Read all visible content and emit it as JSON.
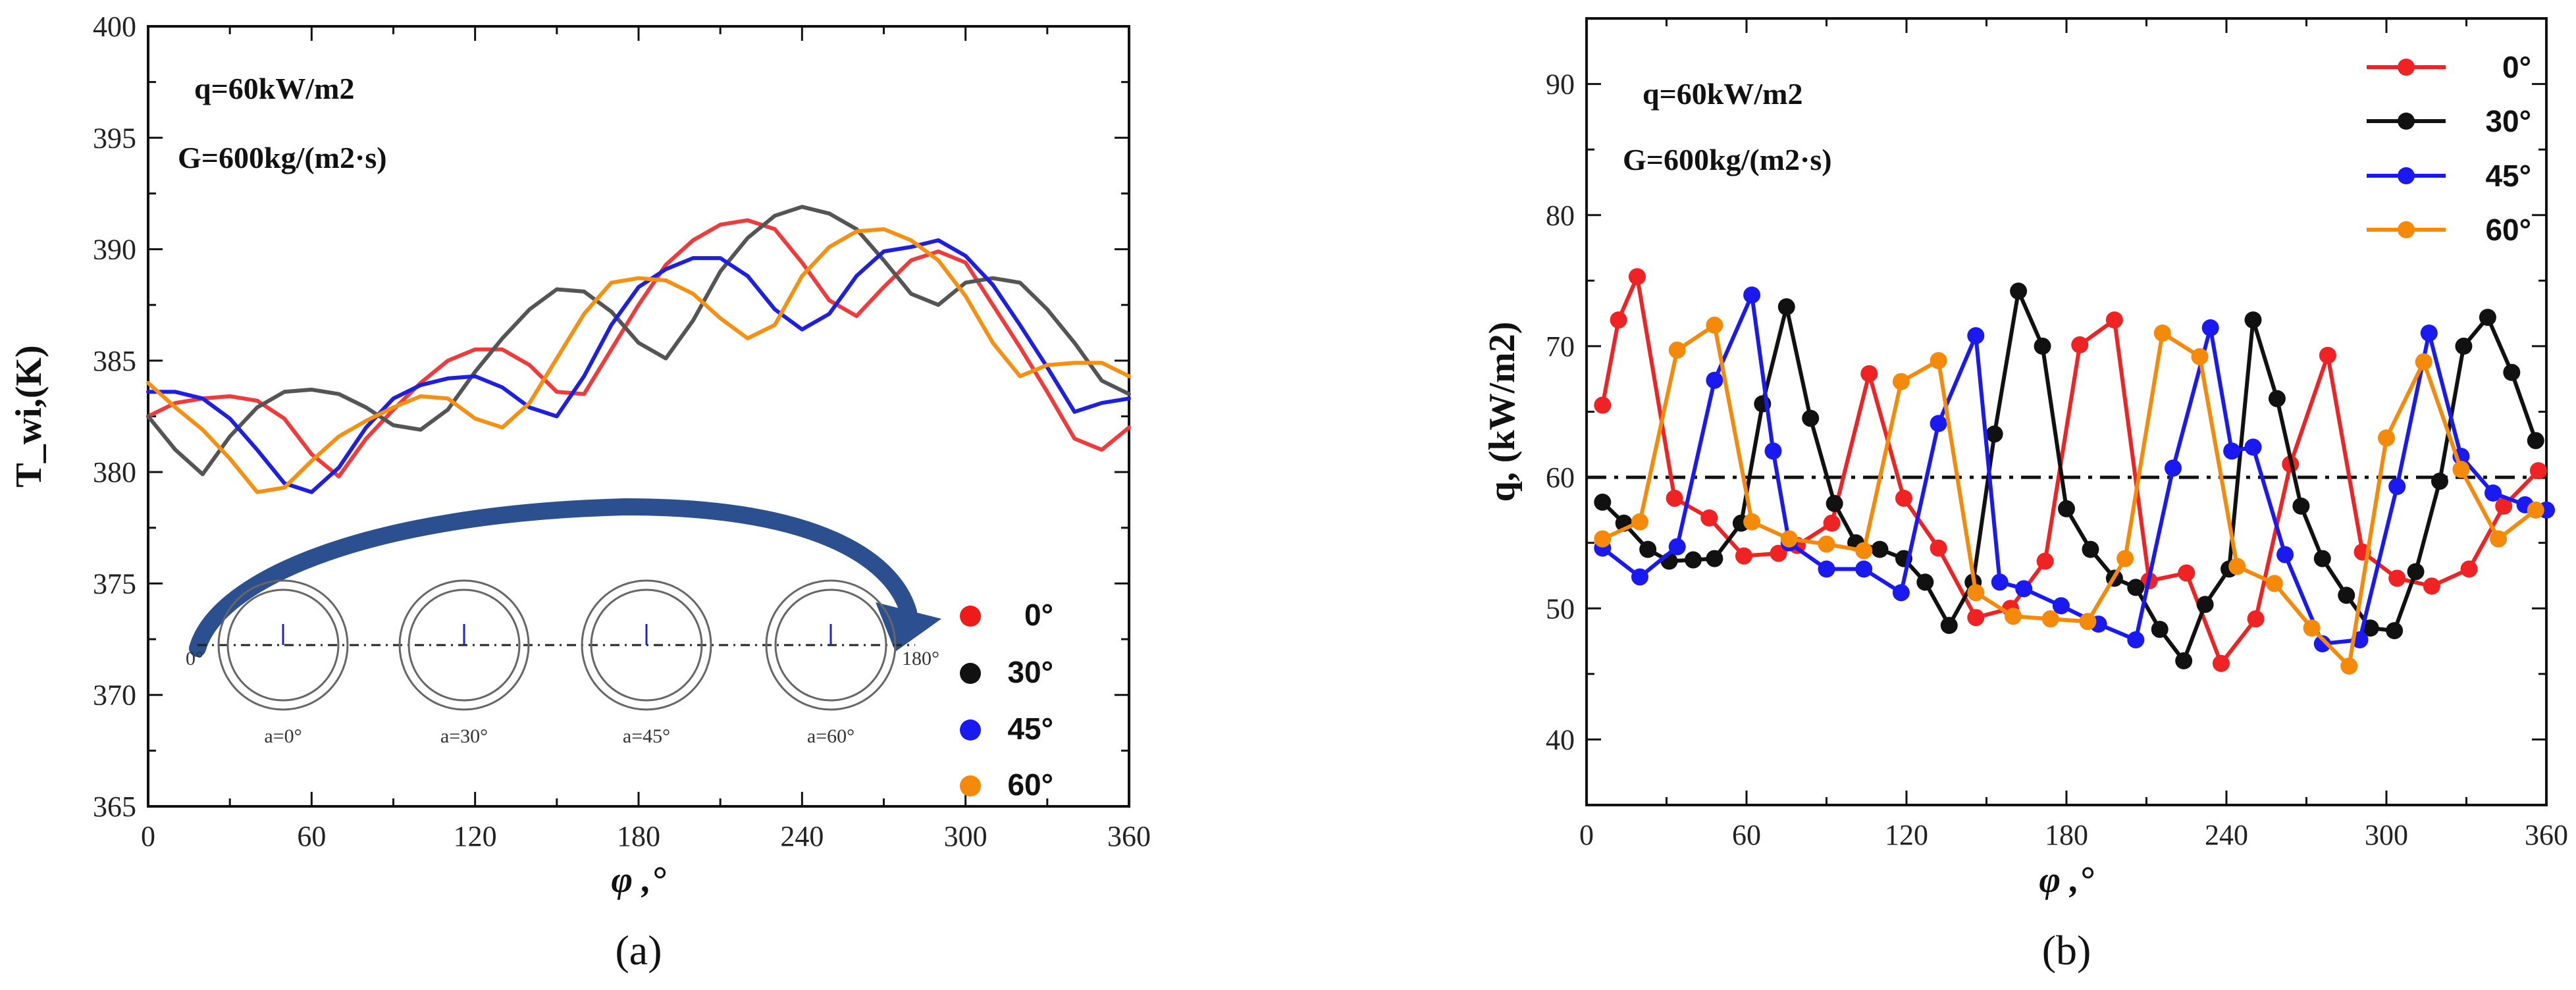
{
  "chart_data": [
    {
      "type": "line",
      "panel": "(a)",
      "title": "",
      "xlabel": "φ ,°",
      "ylabel": "T_wi,(K)",
      "xlim": [
        0,
        360
      ],
      "ylim": [
        365,
        400
      ],
      "xticks": [
        0,
        60,
        120,
        180,
        240,
        300,
        360
      ],
      "yticks": [
        365,
        370,
        375,
        380,
        385,
        390,
        395,
        400
      ],
      "annotations": [
        "q=60kW/m2",
        "G=600kg/(m2·s)"
      ],
      "inset": {
        "start_label": "0°",
        "end_label": "180°",
        "tube_labels": [
          "a=0°",
          "a=30°",
          "a=45°",
          "a=60°"
        ]
      },
      "series": [
        {
          "name": "0°",
          "color": "#ef3b3b",
          "legend_color": "#f01a1a",
          "x": [
            0,
            10,
            20,
            30,
            40,
            50,
            55,
            60,
            70,
            80,
            90,
            100,
            110,
            120,
            130,
            140,
            150,
            160,
            170,
            180,
            190,
            200,
            210,
            220,
            230,
            240,
            250,
            260,
            270,
            280,
            290,
            300,
            310,
            320,
            330,
            340,
            350,
            360
          ],
          "y": [
            382.5,
            383.1,
            383.3,
            383.4,
            383.2,
            382.4,
            381.6,
            380.8,
            379.8,
            381.5,
            382.8,
            384.0,
            385.0,
            385.5,
            385.5,
            384.8,
            383.6,
            383.5,
            385.5,
            387.5,
            389.3,
            390.4,
            391.1,
            391.3,
            390.9,
            389.4,
            387.7,
            387.0,
            388.3,
            389.5,
            389.9,
            389.4,
            387.5,
            385.6,
            383.6,
            381.5,
            381.0,
            382.0
          ]
        },
        {
          "name": "30°",
          "color": "#555555",
          "legend_color": "#111111",
          "x": [
            0,
            10,
            20,
            30,
            40,
            50,
            60,
            70,
            80,
            90,
            100,
            110,
            120,
            130,
            140,
            150,
            160,
            170,
            180,
            190,
            200,
            210,
            220,
            230,
            240,
            250,
            260,
            270,
            280,
            290,
            300,
            310,
            320,
            330,
            340,
            350,
            360
          ],
          "y": [
            382.5,
            381.0,
            379.9,
            381.6,
            382.9,
            383.6,
            383.7,
            383.5,
            382.9,
            382.1,
            381.9,
            382.8,
            384.5,
            386.0,
            387.3,
            388.2,
            388.1,
            387.2,
            385.8,
            385.1,
            386.8,
            389.0,
            390.5,
            391.5,
            391.9,
            391.6,
            390.9,
            389.5,
            388.0,
            387.5,
            388.5,
            388.7,
            388.5,
            387.3,
            385.8,
            384.1,
            383.5
          ]
        },
        {
          "name": "45°",
          "color": "#1f1fe0",
          "legend_color": "#1a1af0",
          "x": [
            0,
            10,
            20,
            30,
            40,
            50,
            60,
            70,
            80,
            90,
            100,
            110,
            120,
            130,
            140,
            150,
            160,
            170,
            180,
            190,
            200,
            210,
            220,
            230,
            240,
            250,
            260,
            270,
            280,
            290,
            300,
            310,
            320,
            330,
            340,
            350,
            360
          ],
          "y": [
            383.6,
            383.6,
            383.3,
            382.4,
            381.0,
            379.5,
            379.1,
            380.2,
            382.0,
            383.3,
            383.9,
            384.2,
            384.3,
            383.8,
            382.9,
            382.5,
            384.3,
            386.6,
            388.3,
            389.1,
            389.6,
            389.6,
            388.8,
            387.3,
            386.4,
            387.1,
            388.8,
            389.9,
            390.1,
            390.4,
            389.7,
            388.4,
            386.6,
            384.7,
            382.7,
            383.1,
            383.3
          ]
        },
        {
          "name": "60°",
          "color": "#f59012",
          "legend_color": "#f58a0a",
          "x": [
            0,
            10,
            20,
            30,
            40,
            50,
            60,
            70,
            80,
            90,
            100,
            110,
            120,
            130,
            140,
            150,
            160,
            170,
            180,
            190,
            200,
            210,
            220,
            230,
            240,
            250,
            260,
            270,
            280,
            290,
            300,
            310,
            320,
            330,
            340,
            350,
            360
          ],
          "y": [
            384.0,
            382.9,
            381.9,
            380.6,
            379.1,
            379.3,
            380.5,
            381.6,
            382.3,
            382.9,
            383.4,
            383.3,
            382.4,
            382.0,
            383.1,
            385.1,
            387.1,
            388.5,
            388.7,
            388.6,
            388.0,
            386.9,
            386.0,
            386.6,
            388.8,
            390.1,
            390.8,
            390.9,
            390.4,
            389.5,
            387.9,
            385.8,
            384.3,
            384.8,
            384.9,
            384.9,
            384.3
          ]
        }
      ],
      "legend": {
        "placement": "right, lower"
      }
    },
    {
      "type": "line",
      "panel": "(b)",
      "title": "",
      "xlabel": "φ ,°",
      "ylabel": "q, (kW/m2)",
      "xlim": [
        0,
        360
      ],
      "ylim": [
        35,
        95
      ],
      "xticks": [
        0,
        60,
        120,
        180,
        240,
        300,
        360
      ],
      "yticks": [
        40,
        50,
        60,
        70,
        80,
        90
      ],
      "reference_line": {
        "y": 60,
        "style": "dash-dot"
      },
      "annotations": [
        "q=60kW/m2",
        "G=600kg/(m2·s)"
      ],
      "series": [
        {
          "name": "0°",
          "color": "#ef2323",
          "x": [
            6,
            12,
            19,
            33,
            46,
            59,
            72,
            79,
            92,
            106,
            119,
            132,
            146,
            159,
            172,
            185,
            198,
            211,
            225,
            238,
            251,
            264,
            278,
            291,
            304,
            317,
            331,
            344,
            357
          ],
          "y": [
            65.5,
            72,
            75.3,
            58.4,
            56.9,
            54.0,
            54.2,
            54.8,
            56.5,
            67.9,
            58.4,
            54.6,
            49.3,
            50.0,
            53.6,
            70.1,
            72.0,
            52.1,
            52.7,
            45.8,
            49.2,
            61.0,
            69.3,
            54.3,
            52.3,
            51.7,
            53.0,
            57.8,
            60.5
          ]
        },
        {
          "name": "30°",
          "color": "#111111",
          "x": [
            6,
            14,
            23,
            31,
            40,
            48,
            58,
            66,
            75,
            84,
            93,
            101,
            110,
            119,
            127,
            136,
            145,
            153,
            162,
            171,
            180,
            189,
            198,
            206,
            215,
            224,
            232,
            241,
            250,
            259,
            268,
            276,
            285,
            294,
            303,
            311,
            320,
            329,
            338,
            347,
            356
          ],
          "y": [
            58.1,
            56.5,
            54.5,
            53.6,
            53.7,
            53.8,
            56.5,
            65.6,
            73.0,
            64.5,
            58.0,
            55.0,
            54.5,
            53.8,
            52.0,
            48.7,
            52.0,
            63.3,
            74.2,
            70.0,
            57.6,
            54.5,
            52.3,
            51.6,
            48.4,
            46.0,
            50.3,
            53.0,
            72.0,
            66.0,
            57.8,
            53.8,
            51.0,
            48.5,
            48.3,
            52.8,
            59.7,
            70.0,
            72.2,
            68.0,
            62.8
          ]
        },
        {
          "name": "45°",
          "color": "#1a1af0",
          "x": [
            6,
            20,
            34,
            48,
            62,
            70,
            76,
            90,
            104,
            118,
            132,
            146,
            155,
            164,
            178,
            192,
            206,
            220,
            234,
            242,
            250,
            262,
            276,
            290,
            304,
            316,
            328,
            340,
            352,
            360
          ],
          "y": [
            54.6,
            52.4,
            54.7,
            67.4,
            73.9,
            62.0,
            55.0,
            53.0,
            53.0,
            51.2,
            64.1,
            70.8,
            52.0,
            51.5,
            50.2,
            48.8,
            47.6,
            60.7,
            71.4,
            62.0,
            62.3,
            54.1,
            47.3,
            47.6,
            59.3,
            71.0,
            61.6,
            58.8,
            57.9,
            57.5
          ]
        },
        {
          "name": "60°",
          "color": "#f58a0a",
          "x": [
            6,
            20,
            34,
            48,
            62,
            76,
            90,
            104,
            118,
            132,
            146,
            160,
            174,
            188,
            202,
            216,
            230,
            244,
            258,
            272,
            286,
            300,
            314,
            328,
            342,
            356
          ],
          "y": [
            55.3,
            56.6,
            69.7,
            71.6,
            56.6,
            55.3,
            54.9,
            54.4,
            67.3,
            68.9,
            51.2,
            49.4,
            49.2,
            49.0,
            53.8,
            71.0,
            69.2,
            53.2,
            51.9,
            48.5,
            45.6,
            63.0,
            68.8,
            60.6,
            55.3,
            57.5
          ]
        }
      ],
      "legend": {
        "placement": "top-right"
      }
    }
  ],
  "panel_captions": {
    "a": "(a)",
    "b": "(b)"
  }
}
